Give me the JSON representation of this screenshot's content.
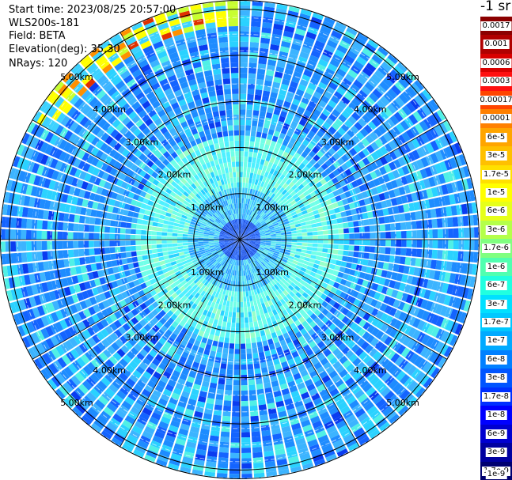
{
  "header": {
    "start_time": "Start time: 2023/08/25 20:57:00",
    "instrument": "WLS200s-181",
    "field": "Field: BETA",
    "elevation": "Elevation(deg): 35.30",
    "nrays": "NRays: 120"
  },
  "colorbar": {
    "unit_label": "-1 sr",
    "labels": [
      "0.0017",
      "0.001",
      "0.0006",
      "0.0003",
      "0.00017",
      "0.0001",
      "6e-5",
      "3e-5",
      "1.7e-5",
      "1e-5",
      "6e-6",
      "3e-6",
      "1.7e-6",
      "1e-6",
      "6e-7",
      "3e-7",
      "1.7e-7",
      "1e-7",
      "6e-8",
      "3e-8",
      "1.7e-8",
      "1e-8",
      "6e-9",
      "3e-9",
      "1.7e-9",
      "1e-9"
    ],
    "colors": [
      "#8b0000",
      "#b00000",
      "#d80000",
      "#ff1010",
      "#ff4500",
      "#ff8000",
      "#ffa500",
      "#ffc000",
      "#ffe000",
      "#ffff00",
      "#e6ff1a",
      "#b4ff4a",
      "#80ff80",
      "#50ffb0",
      "#20ffe0",
      "#00e0ff",
      "#00c8ff",
      "#00aaff",
      "#0080ff",
      "#0055ff",
      "#0030ff",
      "#0000ff",
      "#0000d0",
      "#0000a0",
      "#000070"
    ]
  },
  "range_rings": {
    "unit": "km",
    "labels": [
      "1.00km",
      "2.00km",
      "3.00km",
      "4.00km",
      "5.00km"
    ]
  },
  "scan": {
    "nrays": 120,
    "range_max_km": 5.2
  }
}
